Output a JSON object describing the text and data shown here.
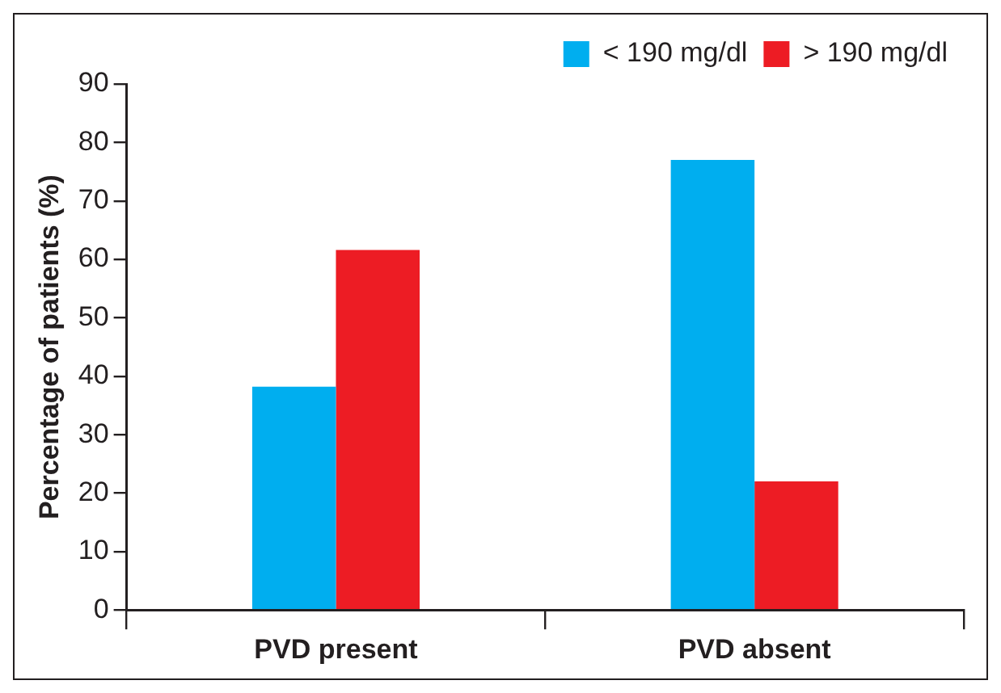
{
  "chart_data": {
    "type": "bar",
    "ylabel": "Percentage of patients (%)",
    "categories": [
      "PVD present",
      "PVD absent"
    ],
    "series": [
      {
        "name": "< 190 mg/dl",
        "color": "#00aeef",
        "values": [
          38.2,
          77.0
        ]
      },
      {
        "name": "> 190 mg/dl",
        "color": "#ed1c24",
        "values": [
          61.6,
          22.0
        ]
      }
    ],
    "ylim": [
      0,
      90
    ],
    "yticks": [
      0,
      10,
      20,
      30,
      40,
      50,
      60,
      70,
      80,
      90
    ],
    "grid": false,
    "legend": "top right"
  }
}
